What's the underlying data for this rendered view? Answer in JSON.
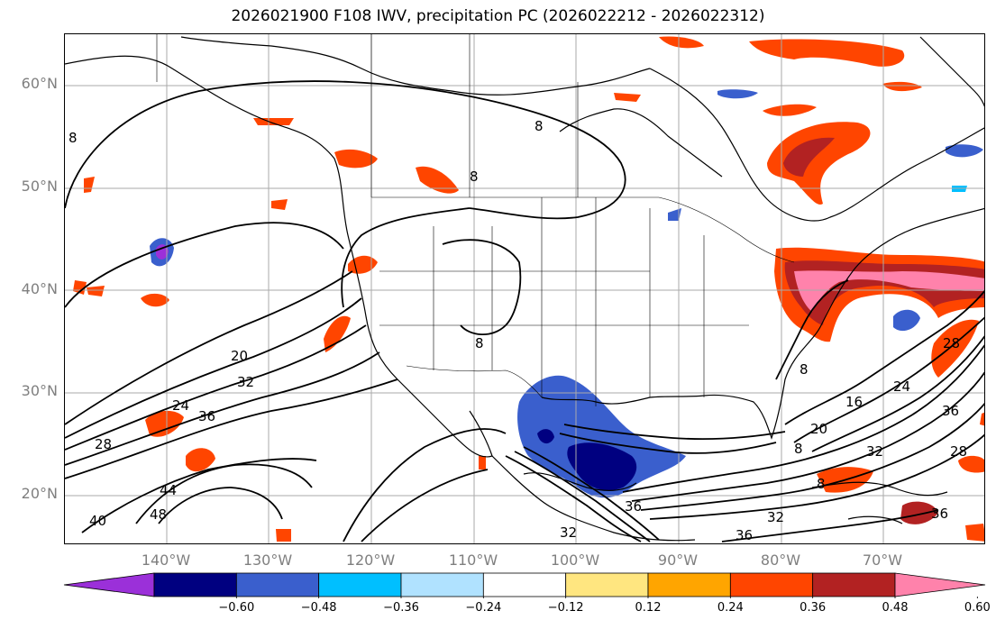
{
  "title": "2026021900 F108 IWV, precipitation PC (2026022212 - 2026022312)",
  "map": {
    "lat_labels": [
      "60°N",
      "50°N",
      "40°N",
      "30°N",
      "20°N"
    ],
    "lon_labels": [
      "140°W",
      "130°W",
      "120°W",
      "110°W",
      "100°W",
      "90°W",
      "80°W",
      "70°W"
    ],
    "contour_labels": [
      "8",
      "8",
      "8",
      "20",
      "32",
      "24",
      "36",
      "28",
      "44",
      "48",
      "40",
      "36",
      "32",
      "36",
      "8",
      "16",
      "20",
      "24",
      "28",
      "36",
      "28",
      "32",
      "8",
      "8",
      "8",
      "32",
      "36"
    ],
    "grid_color": "#aaaaaa"
  },
  "colorbar": {
    "ticks": [
      "−0.60",
      "−0.48",
      "−0.36",
      "−0.24",
      "−0.12",
      "0.12",
      "0.24",
      "0.36",
      "0.48",
      "0.60"
    ],
    "colors": [
      "#9b30d9",
      "#000080",
      "#3a5fcd",
      "#00bfff",
      "#b0e2ff",
      "#ffffff",
      "#ffe680",
      "#ffa500",
      "#ff4500",
      "#b22222",
      "#ff82ab"
    ]
  }
}
